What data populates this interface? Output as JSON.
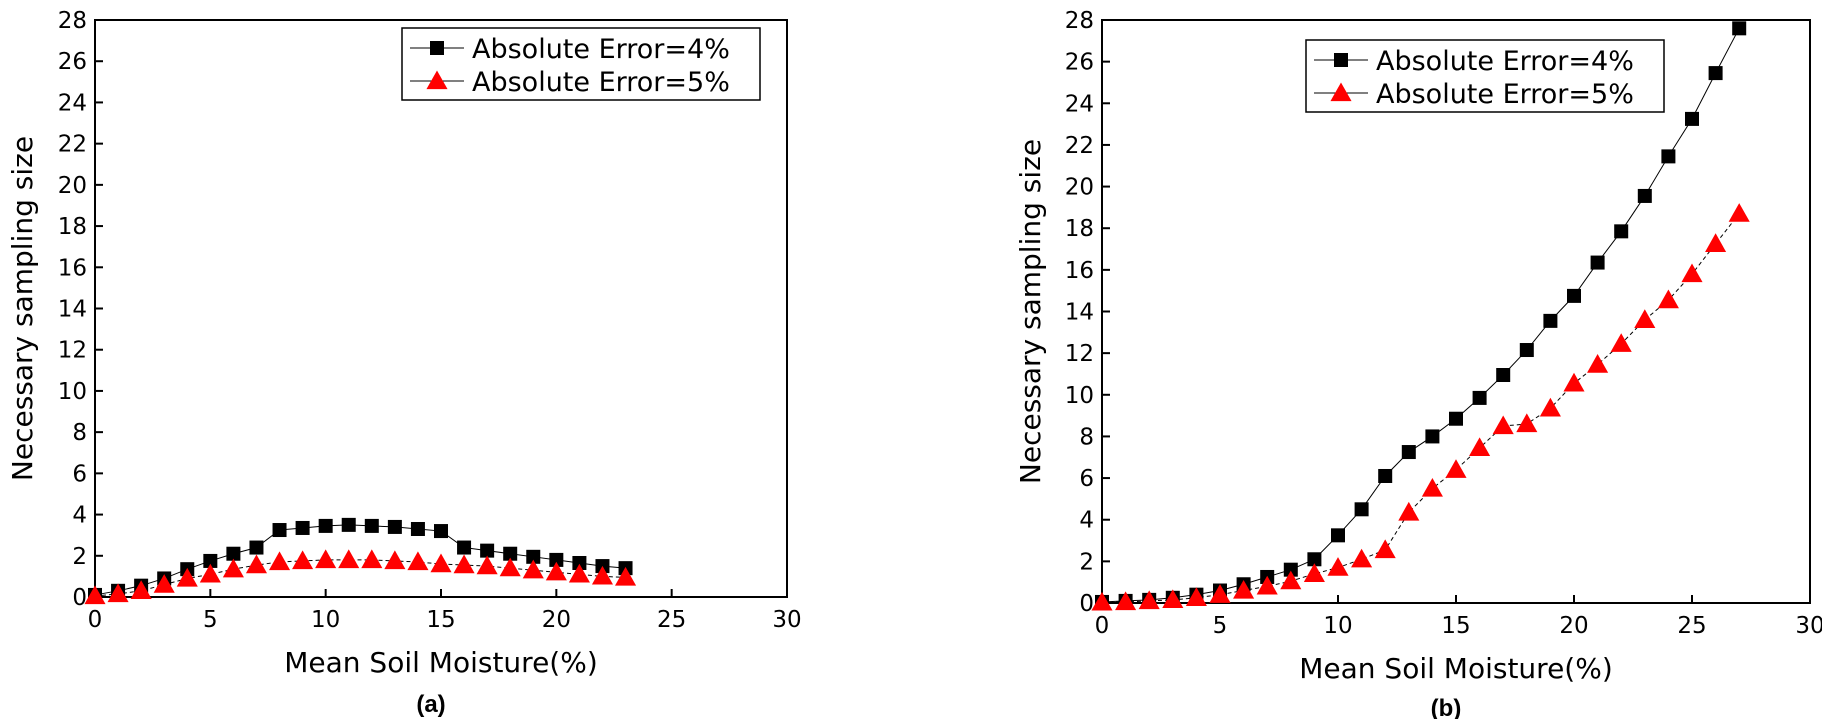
{
  "chart_data": [
    {
      "type": "line",
      "panel_label": "(a)",
      "xlabel": "Mean Soil Moisture(%)",
      "ylabel": "Necessary sampling size",
      "xlim": [
        0,
        30
      ],
      "ylim": [
        0,
        28
      ],
      "xticks": [
        0,
        5,
        10,
        15,
        20,
        25,
        30
      ],
      "yticks": [
        0,
        2,
        4,
        6,
        8,
        10,
        12,
        14,
        16,
        18,
        20,
        22,
        24,
        26,
        28
      ],
      "grid": false,
      "legend_position": "top-right",
      "series": [
        {
          "name": "Absolute Error=4%",
          "marker": "square",
          "color": "#000000",
          "x": [
            0,
            1,
            2,
            3,
            4,
            5,
            6,
            7,
            8,
            9,
            10,
            11,
            12,
            13,
            14,
            15,
            16,
            17,
            18,
            19,
            20,
            21,
            22,
            23
          ],
          "y": [
            0.1,
            0.3,
            0.55,
            0.9,
            1.35,
            1.75,
            2.1,
            2.4,
            3.25,
            3.35,
            3.45,
            3.5,
            3.45,
            3.4,
            3.3,
            3.2,
            2.4,
            2.25,
            2.1,
            1.95,
            1.8,
            1.65,
            1.5,
            1.4
          ]
        },
        {
          "name": "Absolute Error=5%",
          "marker": "triangle",
          "color": "#ff0000",
          "x": [
            0,
            1,
            2,
            3,
            4,
            5,
            6,
            7,
            8,
            9,
            10,
            11,
            12,
            13,
            14,
            15,
            16,
            17,
            18,
            19,
            20,
            21,
            22,
            23
          ],
          "y": [
            0.05,
            0.15,
            0.3,
            0.6,
            0.9,
            1.1,
            1.35,
            1.55,
            1.7,
            1.75,
            1.8,
            1.8,
            1.8,
            1.75,
            1.7,
            1.6,
            1.55,
            1.5,
            1.4,
            1.3,
            1.2,
            1.1,
            1.0,
            0.95
          ]
        }
      ]
    },
    {
      "type": "line",
      "panel_label": "(b)",
      "xlabel": "Mean Soil Moisture(%)",
      "ylabel": "Necessary sampling size",
      "xlim": [
        0,
        30
      ],
      "ylim": [
        0,
        28
      ],
      "xticks": [
        0,
        5,
        10,
        15,
        20,
        25,
        30
      ],
      "yticks": [
        0,
        2,
        4,
        6,
        8,
        10,
        12,
        14,
        16,
        18,
        20,
        22,
        24,
        26,
        28
      ],
      "grid": false,
      "legend_position": "top-center",
      "series": [
        {
          "name": "Absolute Error=4%",
          "marker": "square",
          "color": "#000000",
          "x": [
            0,
            1,
            2,
            3,
            4,
            5,
            6,
            7,
            8,
            9,
            10,
            11,
            12,
            13,
            14,
            15,
            16,
            17,
            18,
            19,
            20,
            21,
            22,
            23,
            24,
            25,
            26,
            27
          ],
          "y": [
            0.05,
            0.1,
            0.15,
            0.25,
            0.4,
            0.6,
            0.9,
            1.25,
            1.6,
            2.1,
            3.25,
            4.5,
            6.1,
            7.25,
            8.0,
            8.85,
            9.85,
            10.95,
            12.15,
            13.55,
            14.75,
            16.35,
            17.85,
            19.55,
            21.45,
            23.25,
            25.45,
            27.6
          ]
        },
        {
          "name": "Absolute Error=5%",
          "marker": "triangle",
          "color": "#ff0000",
          "x": [
            0,
            1,
            2,
            3,
            4,
            5,
            6,
            7,
            8,
            9,
            10,
            11,
            12,
            13,
            14,
            15,
            16,
            17,
            18,
            19,
            20,
            21,
            22,
            23,
            24,
            25,
            26,
            27
          ],
          "y": [
            0.03,
            0.05,
            0.1,
            0.15,
            0.25,
            0.4,
            0.6,
            0.8,
            1.05,
            1.4,
            1.7,
            2.1,
            2.55,
            4.35,
            5.5,
            6.4,
            7.45,
            8.5,
            8.6,
            9.35,
            10.55,
            11.45,
            12.45,
            13.6,
            14.55,
            15.8,
            17.25,
            18.7
          ]
        }
      ]
    }
  ]
}
